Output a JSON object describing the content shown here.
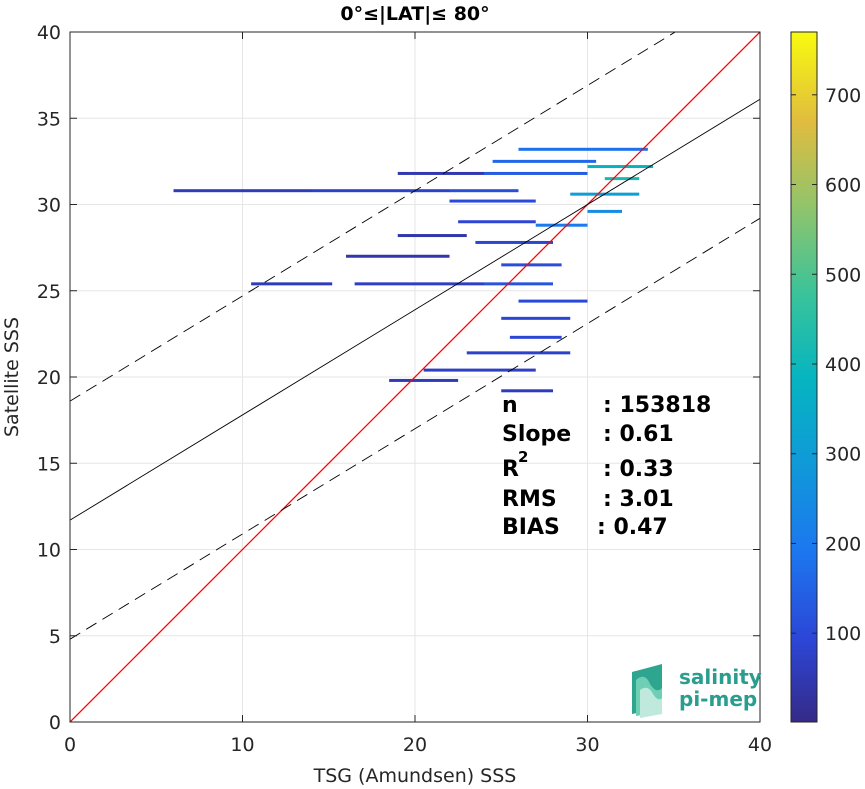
{
  "chart_data": {
    "type": "heatmap",
    "title": "0°≤|LAT|≤ 80°",
    "xlabel": "TSG (Amundsen) SSS",
    "ylabel": "Satellite SSS",
    "xlim": [
      0,
      40
    ],
    "ylim": [
      0,
      40
    ],
    "xticks": [
      "0",
      "10",
      "20",
      "30",
      "40"
    ],
    "yticks": [
      "0",
      "5",
      "10",
      "15",
      "20",
      "25",
      "30",
      "35",
      "40"
    ],
    "grid": true,
    "colorbar": {
      "range": [
        1,
        770
      ],
      "ticks": [
        "100",
        "200",
        "300",
        "400",
        "500",
        "600",
        "700"
      ],
      "colormap": "parula"
    },
    "lines": [
      {
        "role": "one-to-one",
        "color": "#ff0000",
        "style": "solid",
        "x": [
          0,
          40
        ],
        "y": [
          0,
          40
        ]
      },
      {
        "role": "regression",
        "color": "#000000",
        "style": "solid",
        "x": [
          0,
          40
        ],
        "y": [
          11.7,
          36.1
        ]
      },
      {
        "role": "upper-bound",
        "color": "#000000",
        "style": "dashed",
        "x": [
          0,
          40
        ],
        "y": [
          18.6,
          43.0
        ]
      },
      {
        "role": "lower-bound",
        "color": "#000000",
        "style": "dashed",
        "x": [
          0,
          40
        ],
        "y": [
          4.8,
          29.2
        ]
      }
    ],
    "density_bins": [
      {
        "x0": 6.0,
        "x1": 14.0,
        "y": 30.8,
        "count": 60
      },
      {
        "x0": 14.0,
        "x1": 22.0,
        "y": 30.8,
        "count": 80
      },
      {
        "x0": 22.0,
        "x1": 26.0,
        "y": 30.8,
        "count": 110
      },
      {
        "x0": 10.5,
        "x1": 15.2,
        "y": 25.4,
        "count": 60
      },
      {
        "x0": 16.5,
        "x1": 24.0,
        "y": 25.4,
        "count": 70
      },
      {
        "x0": 24.0,
        "x1": 28.0,
        "y": 25.4,
        "count": 120
      },
      {
        "x0": 16.0,
        "x1": 22.0,
        "y": 27.0,
        "count": 40
      },
      {
        "x0": 19.0,
        "x1": 23.0,
        "y": 28.2,
        "count": 40
      },
      {
        "x0": 22.5,
        "x1": 27.0,
        "y": 29.0,
        "count": 90
      },
      {
        "x0": 19.0,
        "x1": 24.0,
        "y": 31.8,
        "count": 50
      },
      {
        "x0": 24.0,
        "x1": 30.0,
        "y": 31.8,
        "count": 140
      },
      {
        "x0": 24.5,
        "x1": 30.5,
        "y": 32.5,
        "count": 160
      },
      {
        "x0": 26.0,
        "x1": 33.5,
        "y": 33.2,
        "count": 180
      },
      {
        "x0": 30.0,
        "x1": 33.8,
        "y": 32.2,
        "count": 380
      },
      {
        "x0": 29.0,
        "x1": 33.0,
        "y": 30.6,
        "count": 300
      },
      {
        "x0": 22.0,
        "x1": 27.0,
        "y": 30.2,
        "count": 100
      },
      {
        "x0": 23.5,
        "x1": 28.0,
        "y": 27.8,
        "count": 90
      },
      {
        "x0": 25.0,
        "x1": 28.5,
        "y": 26.5,
        "count": 110
      },
      {
        "x0": 26.0,
        "x1": 30.0,
        "y": 24.4,
        "count": 100
      },
      {
        "x0": 25.0,
        "x1": 29.0,
        "y": 23.4,
        "count": 90
      },
      {
        "x0": 25.5,
        "x1": 28.5,
        "y": 22.3,
        "count": 90
      },
      {
        "x0": 23.0,
        "x1": 29.0,
        "y": 21.4,
        "count": 80
      },
      {
        "x0": 20.5,
        "x1": 27.0,
        "y": 20.4,
        "count": 70
      },
      {
        "x0": 18.5,
        "x1": 22.5,
        "y": 19.8,
        "count": 60
      },
      {
        "x0": 25.0,
        "x1": 28.0,
        "y": 19.2,
        "count": 60
      },
      {
        "x0": 27.0,
        "x1": 30.0,
        "y": 28.8,
        "count": 200
      },
      {
        "x0": 30.0,
        "x1": 32.0,
        "y": 29.6,
        "count": 250
      },
      {
        "x0": 31.0,
        "x1": 33.0,
        "y": 31.5,
        "count": 420
      }
    ]
  },
  "stats": {
    "n_label": "n",
    "n_value": ": 153818",
    "slope_label": "Slope",
    "slope_value": ": 0.61",
    "r2_label": "R",
    "r2_sup": "2",
    "r2_value": ": 0.33",
    "rms_label": "RMS",
    "rms_value": ": 3.01",
    "bias_label": "BIAS",
    "bias_value": ": 0.47"
  },
  "logo": {
    "line1": "salinity",
    "line2": "pi-mep"
  }
}
